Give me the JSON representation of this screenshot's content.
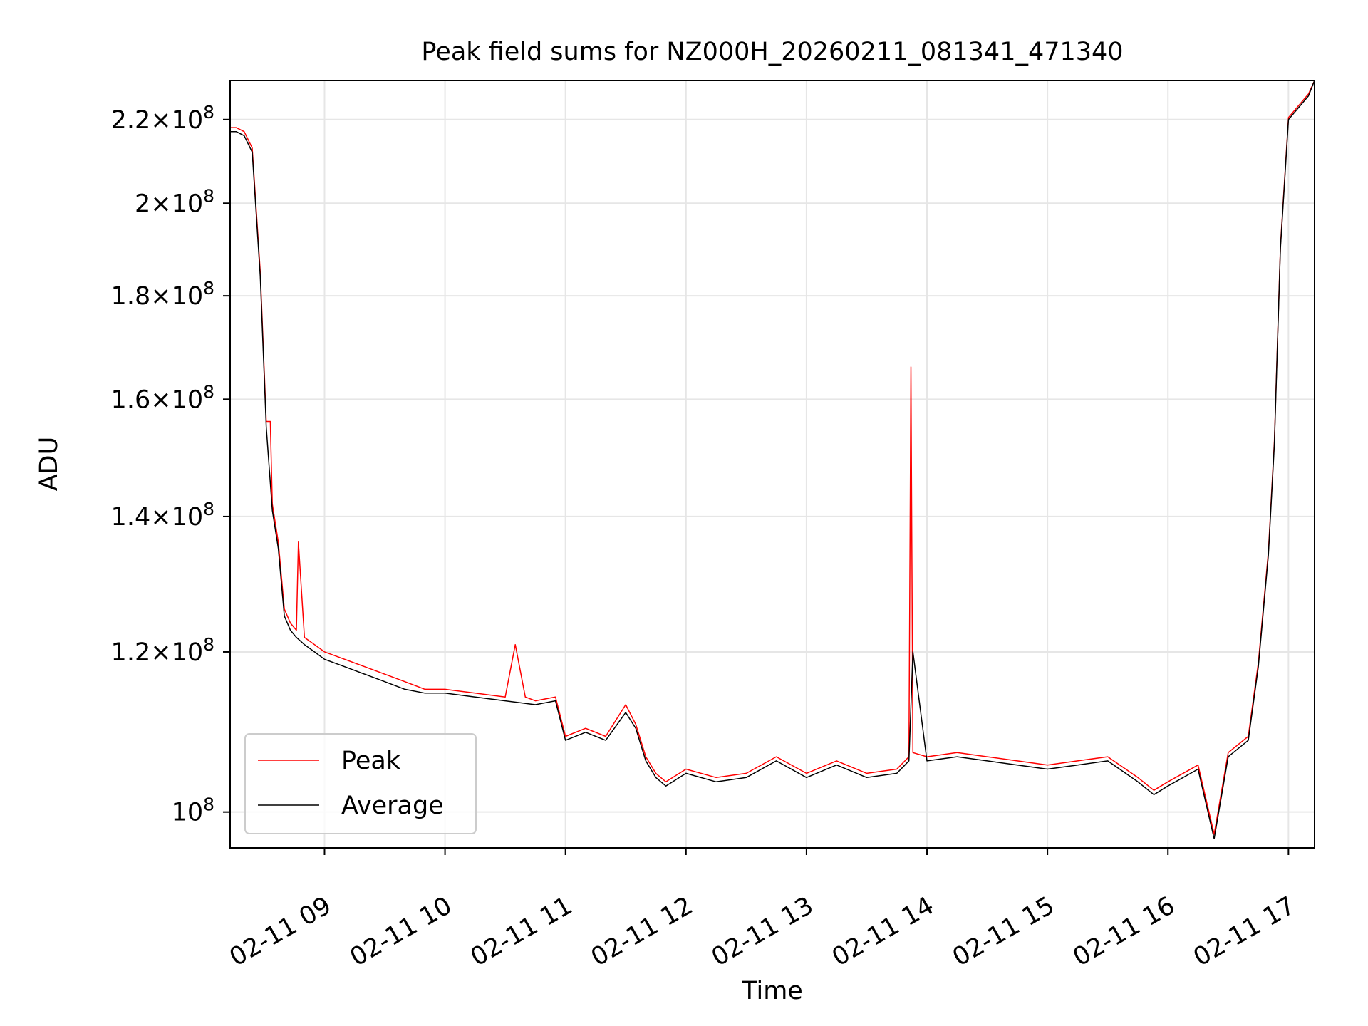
{
  "chart_data": {
    "type": "line",
    "title": "Peak field sums for NZ000H_20260211_081341_471340",
    "xlabel": "Time",
    "ylabel": "ADU",
    "yscale": "log",
    "xlim": [
      "2026-02-11 08:13",
      "2026-02-11 17:13"
    ],
    "ylim": [
      96000000,
      230000000
    ],
    "grid": true,
    "legend": "lower-left",
    "x_ticks": [
      {
        "x": "2026-02-11 09:00",
        "label": "02-11 09"
      },
      {
        "x": "2026-02-11 10:00",
        "label": "02-11 10"
      },
      {
        "x": "2026-02-11 11:00",
        "label": "02-11 11"
      },
      {
        "x": "2026-02-11 12:00",
        "label": "02-11 12"
      },
      {
        "x": "2026-02-11 13:00",
        "label": "02-11 13"
      },
      {
        "x": "2026-02-11 14:00",
        "label": "02-11 14"
      },
      {
        "x": "2026-02-11 15:00",
        "label": "02-11 15"
      },
      {
        "x": "2026-02-11 16:00",
        "label": "02-11 16"
      },
      {
        "x": "2026-02-11 17:00",
        "label": "02-11 17"
      }
    ],
    "y_ticks": [
      {
        "y": 100000000,
        "mantissa": "",
        "exp": "8"
      },
      {
        "y": 120000000,
        "mantissa": "1.2",
        "exp": "8"
      },
      {
        "y": 140000000,
        "mantissa": "1.4",
        "exp": "8"
      },
      {
        "y": 160000000,
        "mantissa": "1.6",
        "exp": "8"
      },
      {
        "y": 180000000,
        "mantissa": "1.8",
        "exp": "8"
      },
      {
        "y": 200000000,
        "mantissa": "2",
        "exp": "8"
      },
      {
        "y": 220000000,
        "mantissa": "2.2",
        "exp": "8"
      }
    ],
    "colors": {
      "Peak": "#ff0000",
      "Average": "#000000",
      "grid": "#e6e6e6"
    },
    "series": [
      {
        "name": "Average",
        "x": [
          "2026-02-11 08:13",
          "2026-02-11 08:16",
          "2026-02-11 08:20",
          "2026-02-11 08:24",
          "2026-02-11 08:28",
          "2026-02-11 08:31",
          "2026-02-11 08:34",
          "2026-02-11 08:37",
          "2026-02-11 08:40",
          "2026-02-11 08:43",
          "2026-02-11 08:46",
          "2026-02-11 08:50",
          "2026-02-11 08:55",
          "2026-02-11 09:00",
          "2026-02-11 09:10",
          "2026-02-11 09:20",
          "2026-02-11 09:30",
          "2026-02-11 09:40",
          "2026-02-11 09:50",
          "2026-02-11 10:00",
          "2026-02-11 10:15",
          "2026-02-11 10:30",
          "2026-02-11 10:45",
          "2026-02-11 10:55",
          "2026-02-11 11:00",
          "2026-02-11 11:10",
          "2026-02-11 11:20",
          "2026-02-11 11:30",
          "2026-02-11 11:35",
          "2026-02-11 11:40",
          "2026-02-11 11:45",
          "2026-02-11 11:50",
          "2026-02-11 12:00",
          "2026-02-11 12:15",
          "2026-02-11 12:30",
          "2026-02-11 12:45",
          "2026-02-11 13:00",
          "2026-02-11 13:15",
          "2026-02-11 13:30",
          "2026-02-11 13:45",
          "2026-02-11 13:51",
          "2026-02-11 13:53",
          "2026-02-11 14:00",
          "2026-02-11 14:15",
          "2026-02-11 14:30",
          "2026-02-11 14:45",
          "2026-02-11 15:00",
          "2026-02-11 15:15",
          "2026-02-11 15:30",
          "2026-02-11 15:45",
          "2026-02-11 15:53",
          "2026-02-11 16:00",
          "2026-02-11 16:15",
          "2026-02-11 16:23",
          "2026-02-11 16:30",
          "2026-02-11 16:40",
          "2026-02-11 16:45",
          "2026-02-11 16:50",
          "2026-02-11 16:53",
          "2026-02-11 16:56",
          "2026-02-11 17:00",
          "2026-02-11 17:05",
          "2026-02-11 17:10",
          "2026-02-11 17:13"
        ],
        "y": [
          217000000,
          217000000,
          216000000,
          212000000,
          184000000,
          155000000,
          141000000,
          135000000,
          125000000,
          123000000,
          122000000,
          121000000,
          120000000,
          119000000,
          118000000,
          117000000,
          116000000,
          115000000,
          114500000,
          114500000,
          114000000,
          113500000,
          113000000,
          113500000,
          108500000,
          109500000,
          108500000,
          112000000,
          110000000,
          106000000,
          104000000,
          103000000,
          104500000,
          103500000,
          104000000,
          106000000,
          104000000,
          105500000,
          104000000,
          104500000,
          106000000,
          120000000,
          106000000,
          106500000,
          106000000,
          105500000,
          105000000,
          105500000,
          106000000,
          103500000,
          102000000,
          103000000,
          105000000,
          97000000,
          106500000,
          108500000,
          118000000,
          134000000,
          152000000,
          190000000,
          220000000,
          223000000,
          226000000,
          230000000
        ]
      },
      {
        "name": "Peak",
        "x": [
          "2026-02-11 08:13",
          "2026-02-11 08:16",
          "2026-02-11 08:20",
          "2026-02-11 08:24",
          "2026-02-11 08:28",
          "2026-02-11 08:31",
          "2026-02-11 08:33",
          "2026-02-11 08:34",
          "2026-02-11 08:37",
          "2026-02-11 08:40",
          "2026-02-11 08:43",
          "2026-02-11 08:46",
          "2026-02-11 08:47",
          "2026-02-11 08:50",
          "2026-02-11 08:55",
          "2026-02-11 09:00",
          "2026-02-11 09:10",
          "2026-02-11 09:20",
          "2026-02-11 09:30",
          "2026-02-11 09:40",
          "2026-02-11 09:50",
          "2026-02-11 10:00",
          "2026-02-11 10:15",
          "2026-02-11 10:30",
          "2026-02-11 10:35",
          "2026-02-11 10:40",
          "2026-02-11 10:45",
          "2026-02-11 10:55",
          "2026-02-11 11:00",
          "2026-02-11 11:10",
          "2026-02-11 11:20",
          "2026-02-11 11:30",
          "2026-02-11 11:35",
          "2026-02-11 11:40",
          "2026-02-11 11:45",
          "2026-02-11 11:50",
          "2026-02-11 12:00",
          "2026-02-11 12:15",
          "2026-02-11 12:30",
          "2026-02-11 12:45",
          "2026-02-11 13:00",
          "2026-02-11 13:15",
          "2026-02-11 13:30",
          "2026-02-11 13:45",
          "2026-02-11 13:51",
          "2026-02-11 13:52",
          "2026-02-11 13:53",
          "2026-02-11 14:00",
          "2026-02-11 14:15",
          "2026-02-11 14:30",
          "2026-02-11 14:45",
          "2026-02-11 15:00",
          "2026-02-11 15:15",
          "2026-02-11 15:30",
          "2026-02-11 15:45",
          "2026-02-11 15:53",
          "2026-02-11 16:00",
          "2026-02-11 16:15",
          "2026-02-11 16:23",
          "2026-02-11 16:30",
          "2026-02-11 16:40",
          "2026-02-11 16:45",
          "2026-02-11 16:50",
          "2026-02-11 16:53",
          "2026-02-11 16:56",
          "2026-02-11 17:00",
          "2026-02-11 17:05",
          "2026-02-11 17:10",
          "2026-02-11 17:13"
        ],
        "y": [
          218000000,
          218000000,
          217000000,
          213000000,
          185000000,
          156000000,
          156000000,
          142000000,
          136000000,
          126000000,
          124000000,
          123000000,
          136000000,
          122000000,
          121000000,
          120000000,
          119000000,
          118000000,
          117000000,
          116000000,
          115000000,
          115000000,
          114500000,
          114000000,
          121000000,
          114000000,
          113500000,
          114000000,
          109000000,
          110000000,
          109000000,
          113000000,
          110500000,
          106500000,
          104500000,
          103500000,
          105000000,
          104000000,
          104500000,
          106500000,
          104500000,
          106000000,
          104500000,
          105000000,
          106500000,
          166000000,
          107000000,
          106500000,
          107000000,
          106500000,
          106000000,
          105500000,
          106000000,
          106500000,
          104000000,
          102500000,
          103500000,
          105500000,
          97500000,
          107000000,
          109000000,
          118500000,
          134500000,
          152500000,
          190500000,
          220500000,
          223500000,
          226500000,
          230000000
        ]
      }
    ]
  }
}
